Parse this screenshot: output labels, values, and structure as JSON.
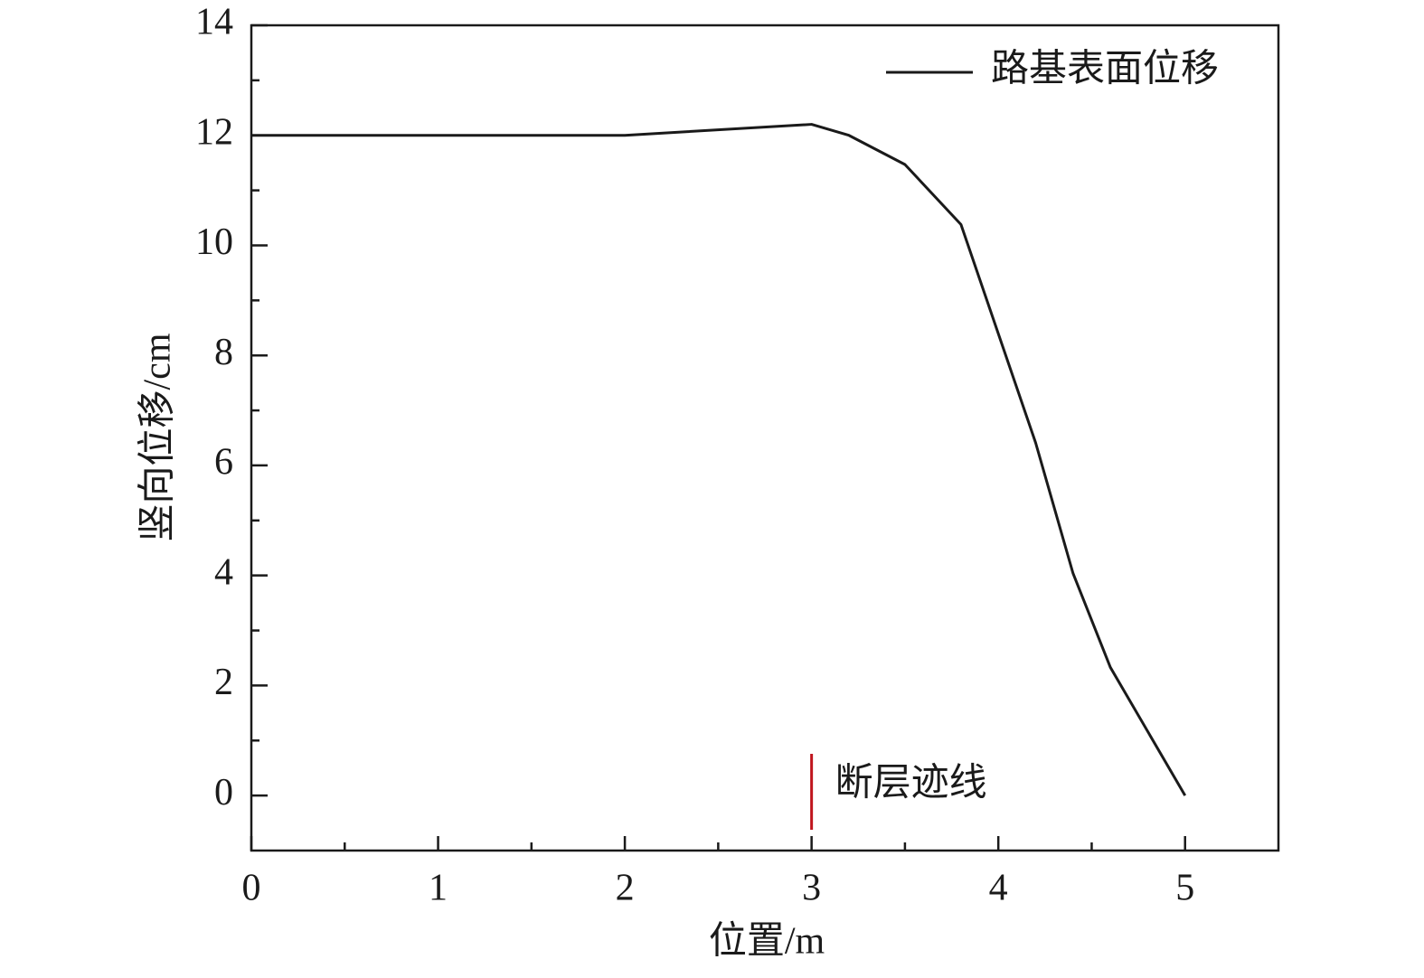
{
  "chart_data": {
    "type": "line",
    "xlabel": "位置/m",
    "ylabel": "竖向位移/cm",
    "x": [
      0,
      2,
      3,
      3.2,
      3.5,
      3.8,
      4.2,
      4.4,
      4.6,
      5
    ],
    "series": [
      {
        "name": "路基表面位移",
        "color": "#1a1a1a",
        "values": [
          12,
          12,
          12.2,
          12.0,
          11.47,
          10.38,
          6.41,
          4.04,
          2.33,
          0
        ]
      }
    ],
    "xlim": [
      0,
      5.5
    ],
    "xticks": [
      0,
      1,
      2,
      3,
      4,
      5
    ],
    "xminorticks": [
      0.5,
      1.5,
      2.5,
      3.5,
      4.5
    ],
    "ylim": [
      -1,
      14
    ],
    "yticks": [
      0,
      2,
      4,
      6,
      8,
      10,
      12,
      14
    ],
    "yminorticks": [
      1,
      3,
      5,
      7,
      9,
      11,
      13
    ],
    "grid": false,
    "legend": "upper right",
    "annotations": [
      {
        "text": "断层迹线",
        "x": 3,
        "color": "#c0151d"
      }
    ]
  }
}
